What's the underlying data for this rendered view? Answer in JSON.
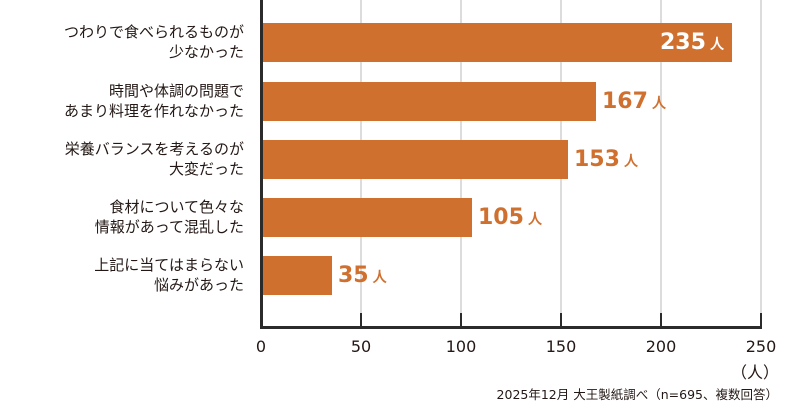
{
  "chart_data": {
    "type": "bar",
    "orientation": "horizontal",
    "title": "",
    "categories": [
      "つわりで食べられるものが少なかった",
      "時間や体調の問題であまり料理を作れなかった",
      "栄養バランスを考えるのが大変だった",
      "食材について色々な情報があって混乱した",
      "上記に当てはまらない悩みがあった"
    ],
    "category_lines": [
      [
        "つわりで食べられるものが",
        "少なかった"
      ],
      [
        "時間や体調の問題で",
        "あまり料理を作れなかった"
      ],
      [
        "栄養バランスを考えるのが",
        "大変だった"
      ],
      [
        "食材について色々な",
        "情報があって混乱した"
      ],
      [
        "上記に当てはまらない",
        "悩みがあった"
      ]
    ],
    "values": [
      235,
      167,
      153,
      105,
      35
    ],
    "value_unit": "人",
    "xlabel": "（人）",
    "ylabel": "",
    "xlim": [
      0,
      250
    ],
    "xticks": [
      "0",
      "50",
      "100",
      "150",
      "200",
      "250"
    ],
    "grid": true,
    "legend": null,
    "bar_color": "#d0702f",
    "annotation": "2025年12月 大王製紙調べ（n=695、複数回答）"
  }
}
